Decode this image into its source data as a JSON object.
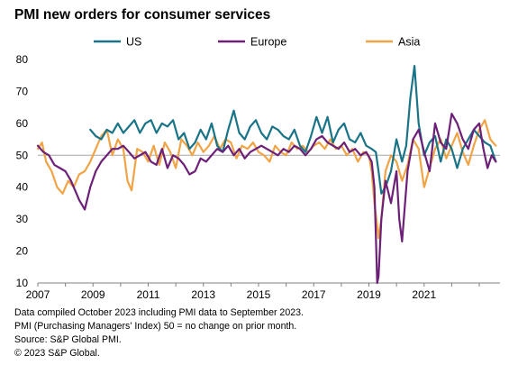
{
  "title": "PMI new orders for consumer services",
  "colors": {
    "US": "#1a7488",
    "Europe": "#6d2077",
    "Asia": "#f0a445",
    "reference": "#a6a6a6",
    "axis": "#808080"
  },
  "footnotes": [
    "Data compiled October 2023 including PMI data to September 2023.",
    "PMI (Purchasing Managers' Index) 50 = no change on prior month.",
    "Source: S&P Global PMI.",
    "© 2023 S&P Global."
  ],
  "chart_data": {
    "type": "line",
    "title": "PMI new orders for consumer services",
    "xlabel": "",
    "ylabel": "",
    "xlim": [
      2007.0,
      2023.75
    ],
    "ylim": [
      10,
      80
    ],
    "yticks": [
      10,
      20,
      30,
      40,
      50,
      60,
      70,
      80
    ],
    "xticks": [
      2007,
      2009,
      2011,
      2013,
      2015,
      2017,
      2019,
      2021
    ],
    "reference_line": 50,
    "grid": false,
    "legend": "top",
    "series": [
      {
        "name": "US",
        "color": "#1a7488",
        "x": [
          2008.9,
          2009.1,
          2009.3,
          2009.5,
          2009.7,
          2009.9,
          2010.1,
          2010.3,
          2010.5,
          2010.7,
          2010.9,
          2011.1,
          2011.3,
          2011.5,
          2011.7,
          2011.9,
          2012.1,
          2012.3,
          2012.5,
          2012.7,
          2012.9,
          2013.1,
          2013.3,
          2013.5,
          2013.7,
          2013.9,
          2014.1,
          2014.3,
          2014.5,
          2014.7,
          2014.9,
          2015.1,
          2015.3,
          2015.5,
          2015.7,
          2015.9,
          2016.1,
          2016.3,
          2016.5,
          2016.7,
          2016.9,
          2017.1,
          2017.3,
          2017.5,
          2017.7,
          2017.9,
          2018.1,
          2018.3,
          2018.5,
          2018.7,
          2018.9,
          2019.1,
          2019.25,
          2019.35,
          2019.45,
          2019.6,
          2019.8,
          2020.0,
          2020.2,
          2020.35,
          2020.5,
          2020.65,
          2020.8,
          2021.0,
          2021.2,
          2021.4,
          2021.6,
          2021.8,
          2022.0,
          2022.2,
          2022.4,
          2022.6,
          2022.8,
          2023.0,
          2023.2,
          2023.4,
          2023.6
        ],
        "y": [
          58,
          56,
          55,
          58,
          57,
          60,
          57,
          59,
          61,
          57,
          60,
          61,
          57,
          60,
          59,
          61,
          55,
          57,
          52,
          54,
          58,
          55,
          60,
          53,
          51,
          58,
          64,
          57,
          55,
          59,
          61,
          57,
          55,
          59,
          58,
          56,
          55,
          58,
          53,
          51,
          56,
          62,
          57,
          62,
          54,
          58,
          60,
          55,
          54,
          57,
          53,
          52,
          51,
          45,
          38,
          40,
          45,
          55,
          48,
          53,
          68,
          78,
          60,
          50,
          54,
          56,
          48,
          55,
          52,
          46,
          52,
          55,
          58,
          56,
          54,
          53,
          48
        ]
      },
      {
        "name": "Europe",
        "color": "#6d2077",
        "x": [
          2007.0,
          2007.2,
          2007.4,
          2007.6,
          2007.8,
          2008.0,
          2008.2,
          2008.4,
          2008.5,
          2008.7,
          2008.9,
          2009.1,
          2009.3,
          2009.5,
          2009.7,
          2009.9,
          2010.1,
          2010.3,
          2010.5,
          2010.7,
          2010.9,
          2011.1,
          2011.3,
          2011.5,
          2011.7,
          2011.9,
          2012.1,
          2012.3,
          2012.5,
          2012.7,
          2012.9,
          2013.1,
          2013.3,
          2013.5,
          2013.7,
          2013.9,
          2014.1,
          2014.3,
          2014.5,
          2014.7,
          2014.9,
          2015.1,
          2015.3,
          2015.5,
          2015.7,
          2015.9,
          2016.1,
          2016.3,
          2016.5,
          2016.7,
          2016.9,
          2017.1,
          2017.3,
          2017.5,
          2017.7,
          2017.9,
          2018.1,
          2018.3,
          2018.5,
          2018.7,
          2018.9,
          2019.1,
          2019.2,
          2019.25,
          2019.3,
          2019.35,
          2019.45,
          2019.6,
          2019.8,
          2020.0,
          2020.1,
          2020.2,
          2020.4,
          2020.6,
          2020.8,
          2021.0,
          2021.2,
          2021.4,
          2021.6,
          2021.8,
          2022.0,
          2022.2,
          2022.4,
          2022.6,
          2022.8,
          2023.0,
          2023.15,
          2023.3,
          2023.45,
          2023.6
        ],
        "y": [
          53,
          51,
          50,
          47,
          46,
          45,
          42,
          38,
          36,
          33,
          40,
          45,
          48,
          50,
          52,
          52,
          53,
          51,
          49,
          50,
          51,
          48,
          47,
          52,
          46,
          50,
          49,
          47,
          44,
          45,
          49,
          48,
          50,
          52,
          51,
          53,
          50,
          52,
          49,
          51,
          52,
          53,
          52,
          51,
          50,
          52,
          51,
          53,
          52,
          50,
          52,
          55,
          56,
          54,
          53,
          52,
          54,
          51,
          52,
          50,
          51,
          48,
          40,
          25,
          10,
          12,
          30,
          42,
          35,
          45,
          30,
          23,
          45,
          55,
          58,
          51,
          45,
          60,
          54,
          52,
          63,
          60,
          55,
          52,
          58,
          60,
          52,
          46,
          50,
          48
        ]
      },
      {
        "name": "Asia",
        "color": "#f0a445",
        "x": [
          2007.0,
          2007.15,
          2007.3,
          2007.5,
          2007.7,
          2007.9,
          2008.1,
          2008.3,
          2008.5,
          2008.7,
          2008.9,
          2009.1,
          2009.3,
          2009.5,
          2009.7,
          2009.9,
          2010.1,
          2010.25,
          2010.4,
          2010.6,
          2010.8,
          2011.0,
          2011.2,
          2011.4,
          2011.6,
          2011.8,
          2012.0,
          2012.2,
          2012.4,
          2012.6,
          2012.8,
          2013.0,
          2013.2,
          2013.4,
          2013.6,
          2013.8,
          2014.0,
          2014.2,
          2014.4,
          2014.6,
          2014.8,
          2015.0,
          2015.2,
          2015.4,
          2015.6,
          2015.8,
          2016.0,
          2016.2,
          2016.4,
          2016.6,
          2016.8,
          2017.0,
          2017.2,
          2017.4,
          2017.6,
          2017.8,
          2018.0,
          2018.2,
          2018.4,
          2018.6,
          2018.8,
          2019.0,
          2019.1,
          2019.2,
          2019.3,
          2019.35,
          2019.45,
          2019.6,
          2019.8,
          2020.0,
          2020.2,
          2020.4,
          2020.6,
          2020.8,
          2021.0,
          2021.2,
          2021.4,
          2021.6,
          2021.8,
          2022.0,
          2022.2,
          2022.4,
          2022.6,
          2022.8,
          2023.0,
          2023.2,
          2023.4,
          2023.6
        ],
        "y": [
          52,
          54,
          48,
          45,
          40,
          38,
          42,
          40,
          44,
          45,
          48,
          52,
          56,
          58,
          50,
          55,
          52,
          42,
          39,
          52,
          51,
          48,
          53,
          47,
          54,
          51,
          46,
          55,
          53,
          50,
          54,
          51,
          53,
          56,
          52,
          55,
          54,
          49,
          53,
          52,
          54,
          51,
          50,
          48,
          53,
          51,
          50,
          54,
          52,
          53,
          51,
          53,
          54,
          52,
          55,
          52,
          53,
          50,
          52,
          48,
          51,
          50,
          45,
          35,
          28,
          24,
          30,
          45,
          50,
          48,
          42,
          47,
          55,
          52,
          40,
          46,
          52,
          55,
          49,
          53,
          57,
          51,
          47,
          53,
          58,
          61,
          55,
          53
        ]
      }
    ]
  }
}
